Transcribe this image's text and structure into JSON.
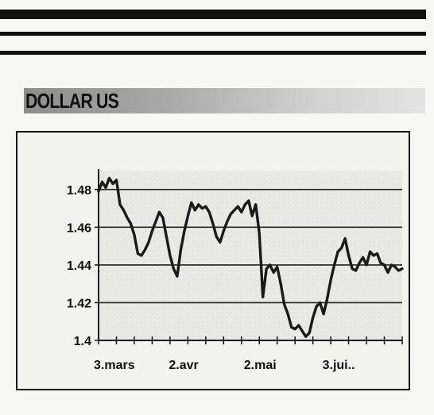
{
  "title": "DOLLAR US",
  "chart_data": {
    "type": "line",
    "title": "DOLLAR US",
    "xlabel": "",
    "ylabel": "",
    "ylim": [
      1.4,
      1.49
    ],
    "yticks": [
      1.4,
      1.42,
      1.44,
      1.46,
      1.48
    ],
    "ytick_labels": [
      "1.4",
      "1.42",
      "1.44",
      "1.46",
      "1.48"
    ],
    "xtick_labels": [
      "3.mars",
      "2.avr",
      "2.mai",
      "3.jui.."
    ],
    "xtick_positions": [
      0,
      21,
      42,
      64
    ],
    "x_count": 86,
    "grid": true,
    "series": [
      {
        "values": [
          1.479,
          1.484,
          1.481,
          1.486,
          1.483,
          1.485,
          1.472,
          1.469,
          1.465,
          1.462,
          1.456,
          1.446,
          1.445,
          1.448,
          1.452,
          1.458,
          1.463,
          1.468,
          1.465,
          1.455,
          1.445,
          1.438,
          1.434,
          1.448,
          1.458,
          1.466,
          1.473,
          1.469,
          1.472,
          1.47,
          1.471,
          1.468,
          1.462,
          1.455,
          1.452,
          1.458,
          1.463,
          1.467,
          1.469,
          1.471,
          1.468,
          1.472,
          1.474,
          1.466,
          1.472,
          1.457,
          1.423,
          1.438,
          1.44,
          1.436,
          1.439,
          1.43,
          1.419,
          1.414,
          1.407,
          1.406,
          1.408,
          1.405,
          1.402,
          1.404,
          1.412,
          1.418,
          1.42,
          1.414,
          1.422,
          1.432,
          1.44,
          1.447,
          1.449,
          1.454,
          1.445,
          1.438,
          1.437,
          1.441,
          1.444,
          1.44,
          1.447,
          1.445,
          1.446,
          1.441,
          1.44,
          1.436,
          1.44,
          1.439,
          1.437,
          1.438
        ]
      }
    ]
  }
}
